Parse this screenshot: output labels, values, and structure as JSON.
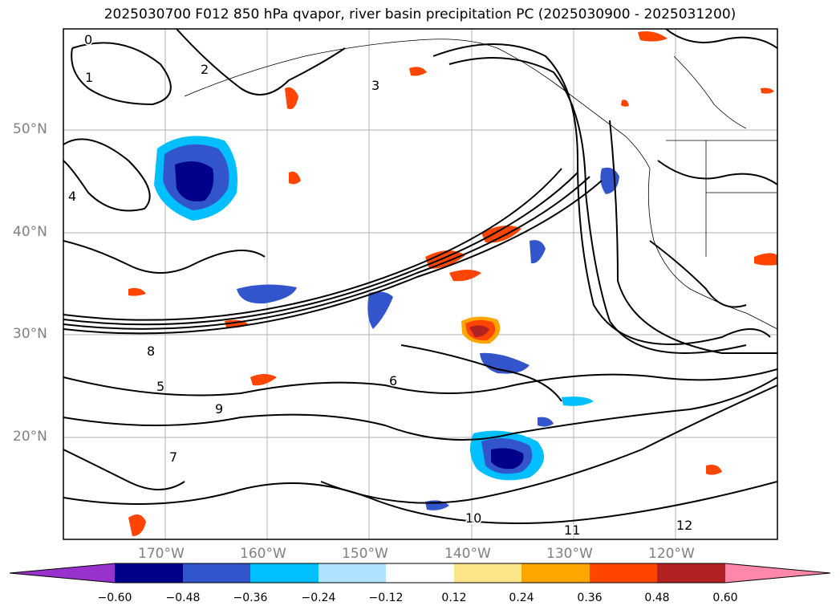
{
  "title": "2025030700 F012 850 hPa qvapor, river basin precipitation PC (2025030900 - 2025031200)",
  "map": {
    "lat_labels": [
      "50°N",
      "40°N",
      "30°N",
      "20°N"
    ],
    "lon_labels": [
      "170°W",
      "160°W",
      "150°W",
      "140°W",
      "130°W",
      "120°W"
    ],
    "contour_labels": [
      "0",
      "1",
      "2",
      "3",
      "4",
      "5",
      "6",
      "7",
      "8",
      "9",
      "10",
      "11",
      "12"
    ],
    "gridlines": true
  },
  "colorbar": {
    "ticks": [
      "−0.60",
      "−0.48",
      "−0.36",
      "−0.24",
      "−0.12",
      "0.12",
      "0.24",
      "0.36",
      "0.48",
      "0.60"
    ],
    "colors": [
      "#9932cc",
      "#00008b",
      "#3355cc",
      "#00bfff",
      "#b0e2ff",
      "#ffffff",
      "#fde58a",
      "#ffa500",
      "#ff4500",
      "#b22222",
      "#ff88aa"
    ],
    "extend": "both"
  }
}
